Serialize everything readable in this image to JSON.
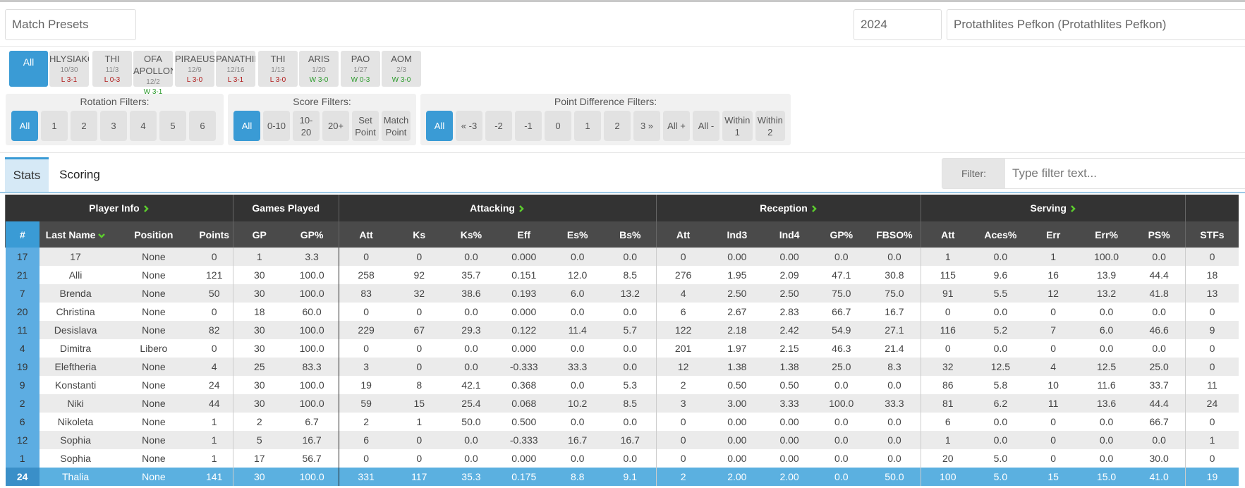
{
  "header": {
    "presets": "Match Presets",
    "season": "2024",
    "team": "Protathlites Pefkon (Protathlites Pefkon)"
  },
  "matches": {
    "all": "All",
    "items": [
      {
        "opponent": "HLYSIAKOS",
        "date": "10/30",
        "result": "L 3-1"
      },
      {
        "opponent": "THI",
        "date": "11/3",
        "result": "L 0-3"
      },
      {
        "opponent": "OFA APOLLON",
        "date": "12/2",
        "result": "W 3-1"
      },
      {
        "opponent": "PIRAEUS",
        "date": "12/9",
        "result": "L 3-0"
      },
      {
        "opponent": "PANATHINAIKOS",
        "date": "12/16",
        "result": "L 3-1"
      },
      {
        "opponent": "THI",
        "date": "1/13",
        "result": "L 3-0"
      },
      {
        "opponent": "ARIS",
        "date": "1/20",
        "result": "W 3-0"
      },
      {
        "opponent": "PAO",
        "date": "1/27",
        "result": "W 0-3"
      },
      {
        "opponent": "AOM",
        "date": "2/3",
        "result": "W 3-0"
      }
    ]
  },
  "filters": [
    {
      "title": "Rotation Filters:",
      "options": [
        "All",
        "1",
        "2",
        "3",
        "4",
        "5",
        "6"
      ]
    },
    {
      "title": "Score Filters:",
      "options": [
        "All",
        "0-10",
        "10-20",
        "20+",
        "Set Point",
        "Match Point"
      ]
    },
    {
      "title": "Point Difference Filters:",
      "options": [
        "All",
        "« -3",
        "-2",
        "-1",
        "0",
        "1",
        "2",
        "3 »",
        "All +",
        "All -",
        "Within 1",
        "Within 2"
      ]
    }
  ],
  "tabs": [
    "Stats",
    "Scoring"
  ],
  "filter_box": {
    "label": "Filter:",
    "placeholder": "Type filter text..."
  },
  "table": {
    "groups": [
      {
        "title": "Player Info",
        "span": 4,
        "expand": true
      },
      {
        "title": "Games Played",
        "span": 2
      },
      {
        "title": "Attacking",
        "span": 6,
        "expand": true
      },
      {
        "title": "Reception",
        "span": 5,
        "expand": true
      },
      {
        "title": "Serving",
        "span": 5,
        "expand": true
      },
      {
        "span": 1
      }
    ],
    "columns": [
      "#",
      "Last Name",
      "Position",
      "Points",
      "GP",
      "GP%",
      "Att",
      "Ks",
      "Ks%",
      "Eff",
      "Es%",
      "Bs%",
      "Att",
      "Ind3",
      "Ind4",
      "GP%",
      "FBSO%",
      "Att",
      "Aces%",
      "Err",
      "Err%",
      "PS%",
      "STFs"
    ],
    "sort_column": 1,
    "selected_row": 12,
    "rows": [
      [
        "17",
        "17",
        "None",
        "0",
        "1",
        "3.3",
        "0",
        "0",
        "0.0",
        "0.000",
        "0.0",
        "0.0",
        "0",
        "0.00",
        "0.00",
        "0.0",
        "0.0",
        "1",
        "0.0",
        "1",
        "100.0",
        "0.0",
        "0"
      ],
      [
        "21",
        "Alli",
        "None",
        "121",
        "30",
        "100.0",
        "258",
        "92",
        "35.7",
        "0.151",
        "12.0",
        "8.5",
        "276",
        "1.95",
        "2.09",
        "47.1",
        "30.8",
        "115",
        "9.6",
        "16",
        "13.9",
        "44.4",
        "18"
      ],
      [
        "7",
        "Brenda",
        "None",
        "50",
        "30",
        "100.0",
        "83",
        "32",
        "38.6",
        "0.193",
        "6.0",
        "13.2",
        "4",
        "2.50",
        "2.50",
        "75.0",
        "75.0",
        "91",
        "5.5",
        "12",
        "13.2",
        "41.8",
        "13"
      ],
      [
        "20",
        "Christina",
        "None",
        "0",
        "18",
        "60.0",
        "0",
        "0",
        "0.0",
        "0.000",
        "0.0",
        "0.0",
        "6",
        "2.67",
        "2.83",
        "66.7",
        "16.7",
        "0",
        "0.0",
        "0",
        "0.0",
        "0.0",
        "0"
      ],
      [
        "11",
        "Desislava",
        "None",
        "82",
        "30",
        "100.0",
        "229",
        "67",
        "29.3",
        "0.122",
        "11.4",
        "5.7",
        "122",
        "2.18",
        "2.42",
        "54.9",
        "27.1",
        "116",
        "5.2",
        "7",
        "6.0",
        "46.6",
        "9"
      ],
      [
        "4",
        "Dimitra",
        "Libero",
        "0",
        "30",
        "100.0",
        "0",
        "0",
        "0.0",
        "0.000",
        "0.0",
        "0.0",
        "201",
        "1.97",
        "2.15",
        "46.3",
        "21.4",
        "0",
        "0.0",
        "0",
        "0.0",
        "0.0",
        "0"
      ],
      [
        "19",
        "Eleftheria",
        "None",
        "4",
        "25",
        "83.3",
        "3",
        "0",
        "0.0",
        "-0.333",
        "33.3",
        "0.0",
        "12",
        "1.38",
        "1.38",
        "25.0",
        "8.3",
        "32",
        "12.5",
        "4",
        "12.5",
        "25.0",
        "0"
      ],
      [
        "9",
        "Konstanti",
        "None",
        "24",
        "30",
        "100.0",
        "19",
        "8",
        "42.1",
        "0.368",
        "0.0",
        "5.3",
        "2",
        "0.50",
        "0.50",
        "0.0",
        "0.0",
        "86",
        "5.8",
        "10",
        "11.6",
        "33.7",
        "11"
      ],
      [
        "2",
        "Niki",
        "None",
        "44",
        "30",
        "100.0",
        "59",
        "15",
        "25.4",
        "0.068",
        "10.2",
        "8.5",
        "3",
        "3.00",
        "3.33",
        "100.0",
        "33.3",
        "81",
        "6.2",
        "11",
        "13.6",
        "44.4",
        "24"
      ],
      [
        "6",
        "Nikoleta",
        "None",
        "1",
        "2",
        "6.7",
        "2",
        "1",
        "50.0",
        "0.500",
        "0.0",
        "0.0",
        "0",
        "0.00",
        "0.00",
        "0.0",
        "0.0",
        "6",
        "0.0",
        "0",
        "0.0",
        "66.7",
        "0"
      ],
      [
        "12",
        "Sophia",
        "None",
        "1",
        "5",
        "16.7",
        "6",
        "0",
        "0.0",
        "-0.333",
        "16.7",
        "16.7",
        "0",
        "0.00",
        "0.00",
        "0.0",
        "0.0",
        "1",
        "0.0",
        "0",
        "0.0",
        "0.0",
        "1"
      ],
      [
        "1",
        "Sophia",
        "None",
        "1",
        "17",
        "56.7",
        "0",
        "0",
        "0.0",
        "0.000",
        "0.0",
        "0.0",
        "0",
        "0.00",
        "0.00",
        "0.0",
        "0.0",
        "20",
        "5.0",
        "0",
        "0.0",
        "30.0",
        "0"
      ],
      [
        "24",
        "Thalia",
        "None",
        "141",
        "30",
        "100.0",
        "331",
        "117",
        "35.3",
        "0.175",
        "8.8",
        "9.1",
        "2",
        "2.00",
        "2.00",
        "0.0",
        "50.0",
        "100",
        "5.0",
        "15",
        "15.0",
        "41.0",
        "19"
      ]
    ]
  }
}
